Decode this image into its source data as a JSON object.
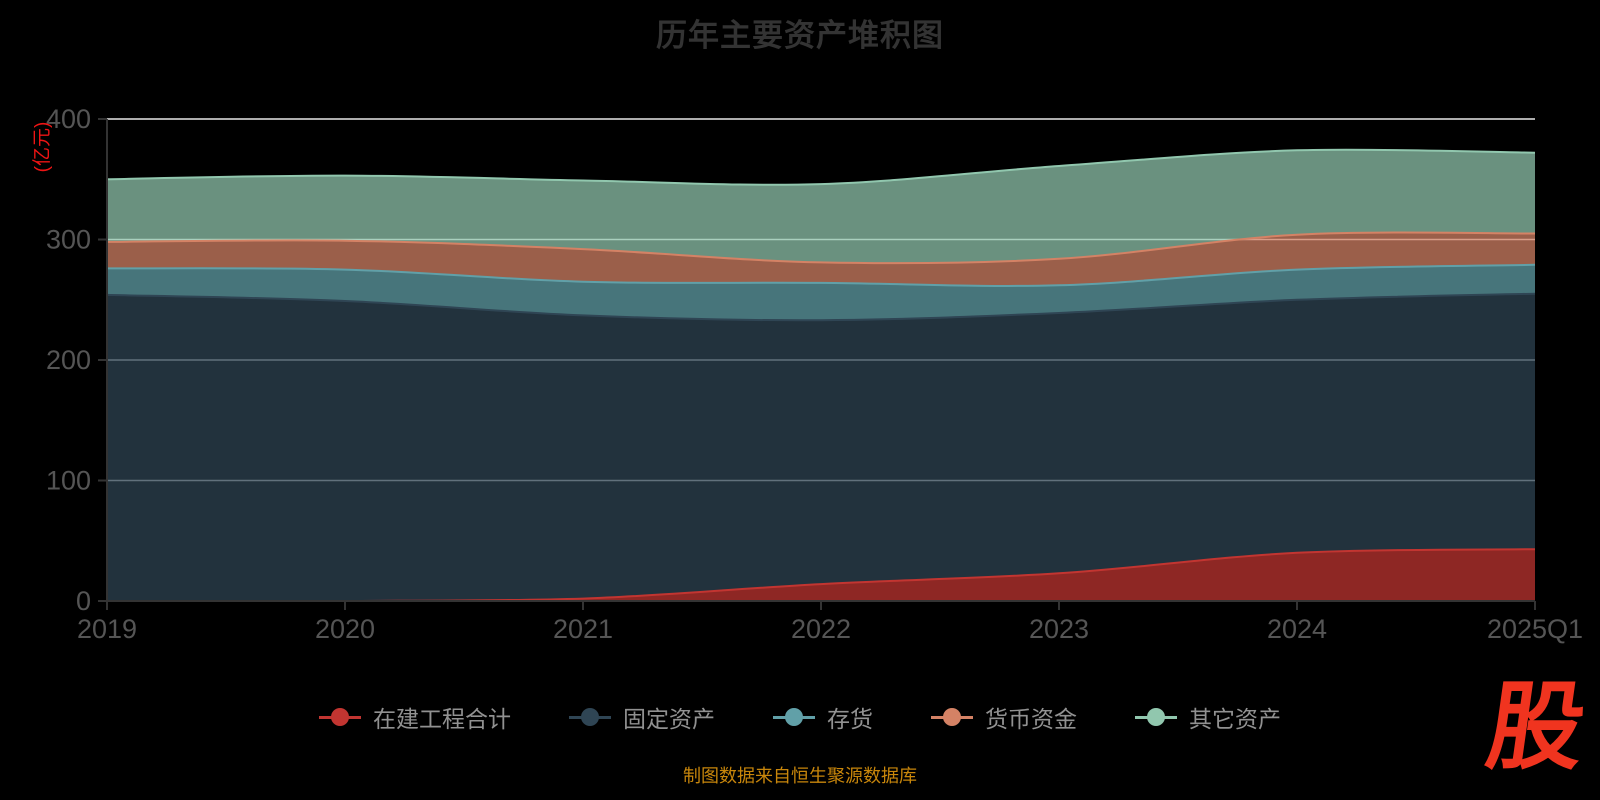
{
  "title": "历年主要资产堆积图",
  "y_axis": {
    "name": "(亿元)",
    "name_color": "#ee1414",
    "ticks": [
      0,
      100,
      200,
      300,
      400
    ]
  },
  "x_axis": {
    "labels": [
      "2019",
      "2020",
      "2021",
      "2022",
      "2023",
      "2024",
      "2025Q1"
    ]
  },
  "source_note": "制图数据来自恒生聚源数据库",
  "logo_text": "股",
  "style_colors": {
    "background": "#000000",
    "title": "#333333",
    "axis_line": "#333333",
    "tick_label": "#555555",
    "gridline": "#e8e8e8",
    "legend_text": "#919191",
    "source_note": "#c8860b",
    "logo": "#f0341f"
  },
  "chart_data": {
    "type": "area",
    "stacked": true,
    "smooth": true,
    "grid": true,
    "legend_position": "bottom",
    "title": "历年主要资产堆积图",
    "ylabel": "(亿元)",
    "ylim": [
      0,
      400
    ],
    "y_ticks": [
      0,
      100,
      200,
      300,
      400
    ],
    "area_opacity": 0.73,
    "categories": [
      "2019",
      "2020",
      "2021",
      "2022",
      "2023",
      "2024",
      "2025Q1"
    ],
    "series": [
      {
        "name": "在建工程合计",
        "color": "#c23531",
        "values": [
          0,
          0,
          2,
          14,
          23,
          40,
          43
        ]
      },
      {
        "name": "固定资产",
        "color": "#2f4554",
        "values": [
          254,
          249,
          235,
          219,
          216,
          210,
          212
        ]
      },
      {
        "name": "存货",
        "color": "#61a0a8",
        "values": [
          22,
          26,
          28,
          31,
          23,
          25,
          24
        ]
      },
      {
        "name": "货币资金",
        "color": "#d48265",
        "values": [
          22,
          24,
          27,
          17,
          22,
          29,
          26
        ]
      },
      {
        "name": "其它资产",
        "color": "#91c7ae",
        "values": [
          52,
          54,
          57,
          65,
          77,
          70,
          67
        ]
      }
    ]
  }
}
